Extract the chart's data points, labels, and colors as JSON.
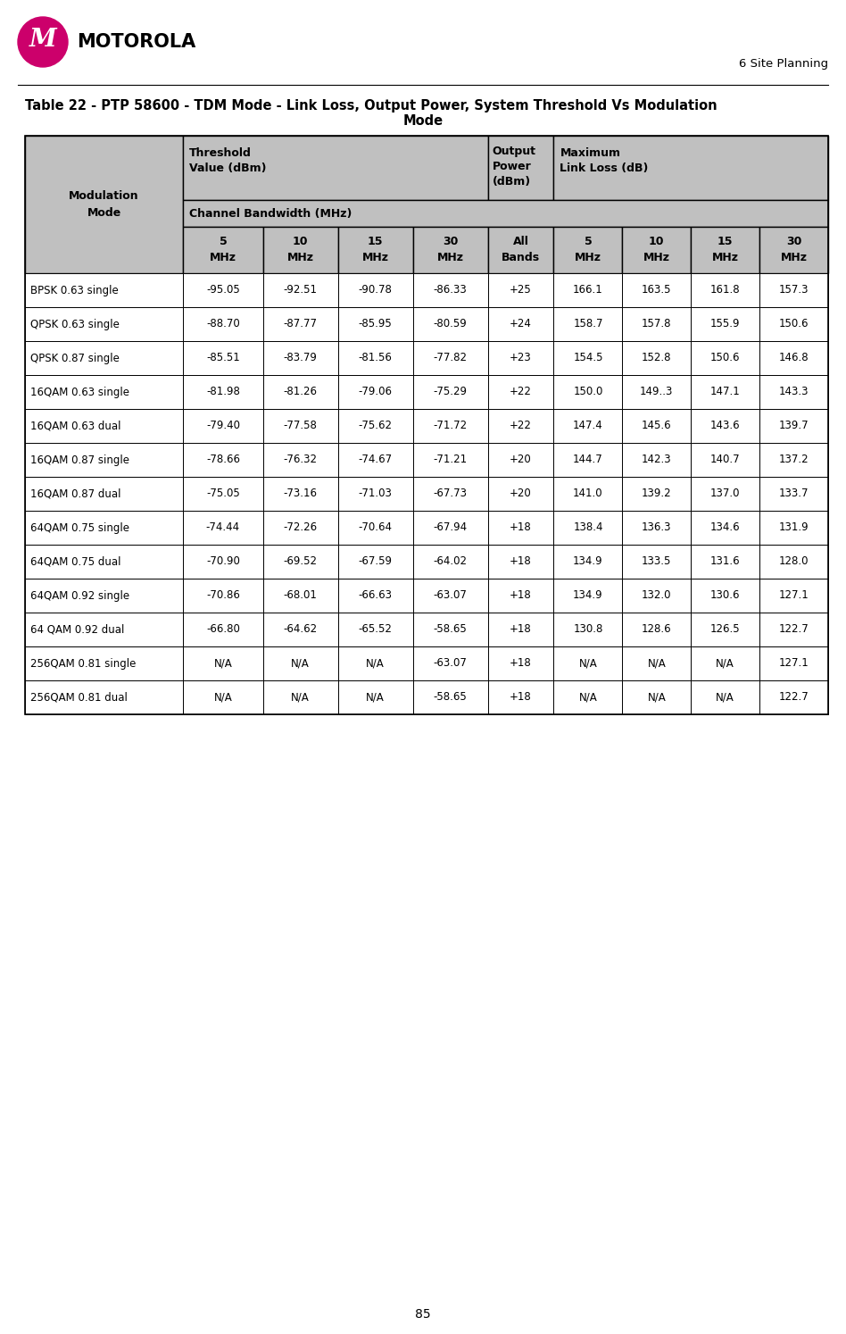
{
  "page_number": "85",
  "section_header": "6 Site Planning",
  "title_line1": "Table 22 - PTP 58600 - TDM Mode - Link Loss, Output Power, System Threshold Vs Modulation",
  "title_line2": "Mode",
  "data_rows": [
    [
      "BPSK 0.63 single",
      "-95.05",
      "-92.51",
      "-90.78",
      "-86.33",
      "+25",
      "166.1",
      "163.5",
      "161.8",
      "157.3"
    ],
    [
      "QPSK 0.63 single",
      "-88.70",
      "-87.77",
      "-85.95",
      "-80.59",
      "+24",
      "158.7",
      "157.8",
      "155.9",
      "150.6"
    ],
    [
      "QPSK 0.87 single",
      "-85.51",
      "-83.79",
      "-81.56",
      "-77.82",
      "+23",
      "154.5",
      "152.8",
      "150.6",
      "146.8"
    ],
    [
      "16QAM 0.63 single",
      "-81.98",
      "-81.26",
      "-79.06",
      "-75.29",
      "+22",
      "150.0",
      "149..3",
      "147.1",
      "143.3"
    ],
    [
      "16QAM 0.63 dual",
      "-79.40",
      "-77.58",
      "-75.62",
      "-71.72",
      "+22",
      "147.4",
      "145.6",
      "143.6",
      "139.7"
    ],
    [
      "16QAM 0.87 single",
      "-78.66",
      "-76.32",
      "-74.67",
      "-71.21",
      "+20",
      "144.7",
      "142.3",
      "140.7",
      "137.2"
    ],
    [
      "16QAM 0.87 dual",
      "-75.05",
      "-73.16",
      "-71.03",
      "-67.73",
      "+20",
      "141.0",
      "139.2",
      "137.0",
      "133.7"
    ],
    [
      "64QAM 0.75 single",
      "-74.44",
      "-72.26",
      "-70.64",
      "-67.94",
      "+18",
      "138.4",
      "136.3",
      "134.6",
      "131.9"
    ],
    [
      "64QAM 0.75 dual",
      "-70.90",
      "-69.52",
      "-67.59",
      "-64.02",
      "+18",
      "134.9",
      "133.5",
      "131.6",
      "128.0"
    ],
    [
      "64QAM 0.92 single",
      "-70.86",
      "-68.01",
      "-66.63",
      "-63.07",
      "+18",
      "134.9",
      "132.0",
      "130.6",
      "127.1"
    ],
    [
      "64 QAM 0.92 dual",
      "-66.80",
      "-64.62",
      "-65.52",
      "-58.65",
      "+18",
      "130.8",
      "128.6",
      "126.5",
      "122.7"
    ],
    [
      "256QAM 0.81 single",
      "N/A",
      "N/A",
      "N/A",
      "-63.07",
      "+18",
      "N/A",
      "N/A",
      "N/A",
      "127.1"
    ],
    [
      "256QAM 0.81 dual",
      "N/A",
      "N/A",
      "N/A",
      "-58.65",
      "+18",
      "N/A",
      "N/A",
      "N/A",
      "122.7"
    ]
  ],
  "header_bg": "#C0C0C0",
  "row_bg_white": "#FFFFFF",
  "border_color": "#000000",
  "logo_color": "#CC006B",
  "header_font_size": 8.5,
  "data_font_size": 8.5,
  "title_font_size": 10.5
}
